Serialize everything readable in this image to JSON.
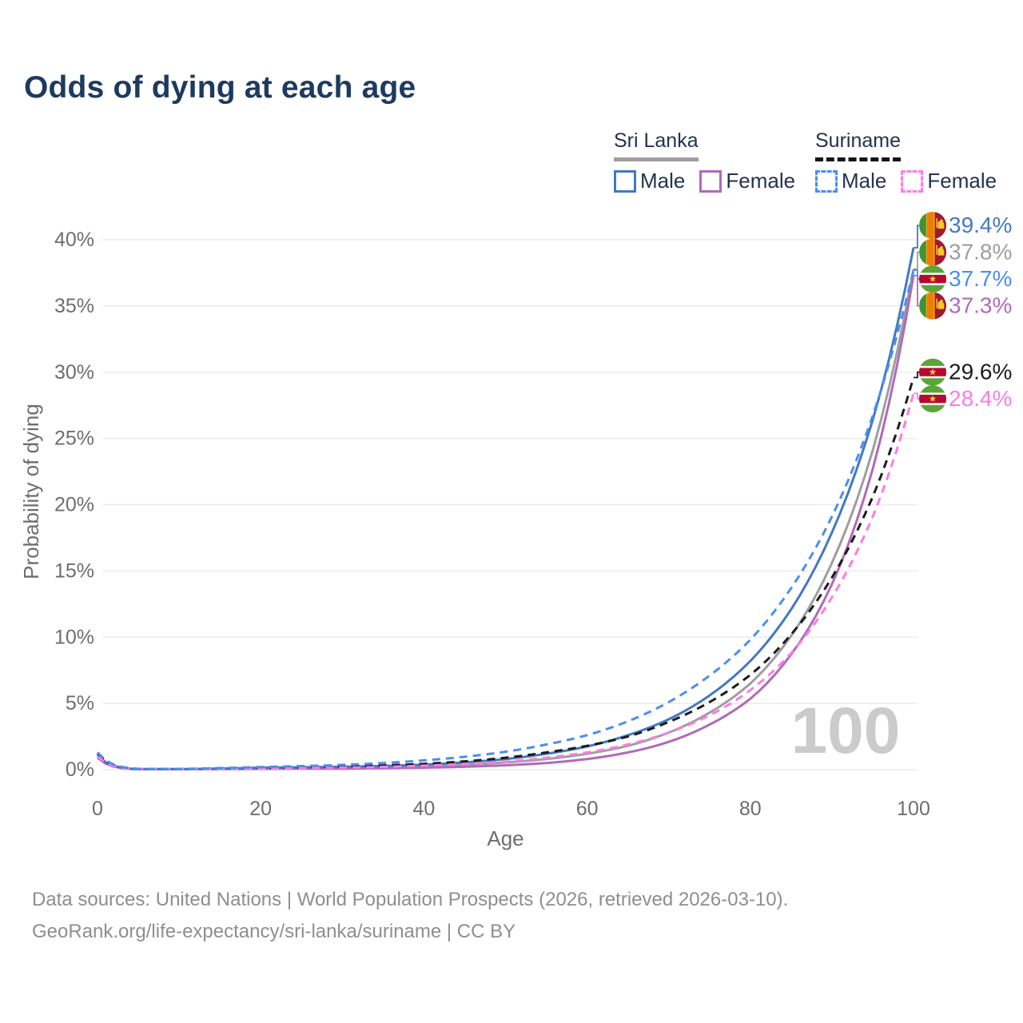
{
  "title": "Odds of dying at each age",
  "legend": {
    "groups": [
      {
        "country": "Sri Lanka",
        "line_style": "solid",
        "underline_color": "#9e9e9e",
        "items": [
          {
            "label": "Male",
            "color": "#4478c1",
            "dashed": false
          },
          {
            "label": "Female",
            "color": "#b06ab8",
            "dashed": false
          }
        ]
      },
      {
        "country": "Suriname",
        "line_style": "dashed",
        "underline_color": "#141414",
        "items": [
          {
            "label": "Male",
            "color": "#4b8ef1",
            "dashed": true
          },
          {
            "label": "Female",
            "color": "#fb7de6",
            "dashed": true
          }
        ]
      }
    ]
  },
  "footer": {
    "line1": "Data sources: United Nations | World Population Prospects (2026, retrieved 2026-03-10).",
    "line2": "GeoRank.org/life-expectancy/sri-lanka/suriname | CC BY"
  },
  "colors": {
    "title": "#1e3a5f",
    "axis_text": "#6e6e6e",
    "grid": "#ececec",
    "watermark": "#cbcbcb",
    "footer_text": "#8e8e8e"
  },
  "chart_data": {
    "type": "line",
    "title": "Odds of dying at each age",
    "xlabel": "Age",
    "ylabel": "Probability of dying",
    "xlim": [
      0,
      100
    ],
    "ylim": [
      0,
      40
    ],
    "x_ticks": [
      0,
      20,
      40,
      60,
      80,
      100
    ],
    "y_ticks": [
      "0%",
      "5%",
      "10%",
      "15%",
      "20%",
      "25%",
      "30%",
      "35%",
      "40%"
    ],
    "y_tick_values": [
      0,
      5,
      10,
      15,
      20,
      25,
      30,
      35,
      40
    ],
    "grid": "horizontal",
    "legend_position": "top-right",
    "watermark": "100",
    "ages": [
      0,
      5,
      10,
      15,
      20,
      25,
      30,
      35,
      40,
      45,
      50,
      55,
      60,
      65,
      70,
      75,
      80,
      85,
      90,
      95,
      100
    ],
    "series": [
      {
        "name": "Sri Lanka Male",
        "color": "#4478c1",
        "dashed": false,
        "flag": "sri-lanka",
        "end_value": 39.4,
        "end_label": "39.4%",
        "values": [
          1.1,
          0.04,
          0.04,
          0.08,
          0.15,
          0.18,
          0.22,
          0.28,
          0.38,
          0.55,
          0.8,
          1.2,
          1.75,
          2.6,
          3.8,
          5.6,
          8.2,
          12.1,
          17.9,
          26.4,
          39.4
        ]
      },
      {
        "name": "Sri Lanka",
        "color": "#9e9e9e",
        "dashed": false,
        "flag": "sri-lanka",
        "end_value": 37.8,
        "end_label": "37.8%",
        "values": [
          1.0,
          0.035,
          0.035,
          0.06,
          0.09,
          0.11,
          0.14,
          0.18,
          0.25,
          0.37,
          0.55,
          0.8,
          1.2,
          1.8,
          2.8,
          4.3,
          6.5,
          10.1,
          15.6,
          24.1,
          37.8
        ]
      },
      {
        "name": "Suriname Male",
        "color": "#4b8ef1",
        "dashed": true,
        "flag": "suriname",
        "end_value": 37.7,
        "end_label": "37.7%",
        "values": [
          1.3,
          0.06,
          0.06,
          0.12,
          0.2,
          0.27,
          0.36,
          0.5,
          0.7,
          0.97,
          1.35,
          1.9,
          2.6,
          3.65,
          5.1,
          7.1,
          9.8,
          13.7,
          19.1,
          26.7,
          37.7
        ]
      },
      {
        "name": "Sri Lanka Female",
        "color": "#b06ab8",
        "dashed": false,
        "flag": "sri-lanka",
        "end_value": 37.3,
        "end_label": "37.3%",
        "values": [
          0.9,
          0.03,
          0.03,
          0.04,
          0.06,
          0.07,
          0.08,
          0.11,
          0.15,
          0.22,
          0.33,
          0.5,
          0.8,
          1.3,
          2.1,
          3.4,
          5.35,
          8.7,
          14.0,
          22.7,
          37.3
        ]
      },
      {
        "name": "Suriname",
        "color": "#1c1c1c",
        "dashed": true,
        "flag": "suriname",
        "end_value": 29.6,
        "end_label": "29.6%",
        "values": [
          1.2,
          0.05,
          0.05,
          0.09,
          0.14,
          0.18,
          0.24,
          0.32,
          0.44,
          0.63,
          0.9,
          1.3,
          1.8,
          2.5,
          3.6,
          5.1,
          7.15,
          10.2,
          14.5,
          20.6,
          29.6
        ]
      },
      {
        "name": "Suriname Female",
        "color": "#fb7de6",
        "dashed": true,
        "flag": "suriname",
        "end_value": 28.4,
        "end_label": "28.4%",
        "values": [
          1.0,
          0.04,
          0.04,
          0.05,
          0.08,
          0.11,
          0.15,
          0.21,
          0.3,
          0.42,
          0.6,
          0.9,
          1.3,
          1.9,
          2.8,
          4.1,
          6.0,
          8.8,
          13.0,
          19.1,
          28.4
        ]
      }
    ]
  }
}
